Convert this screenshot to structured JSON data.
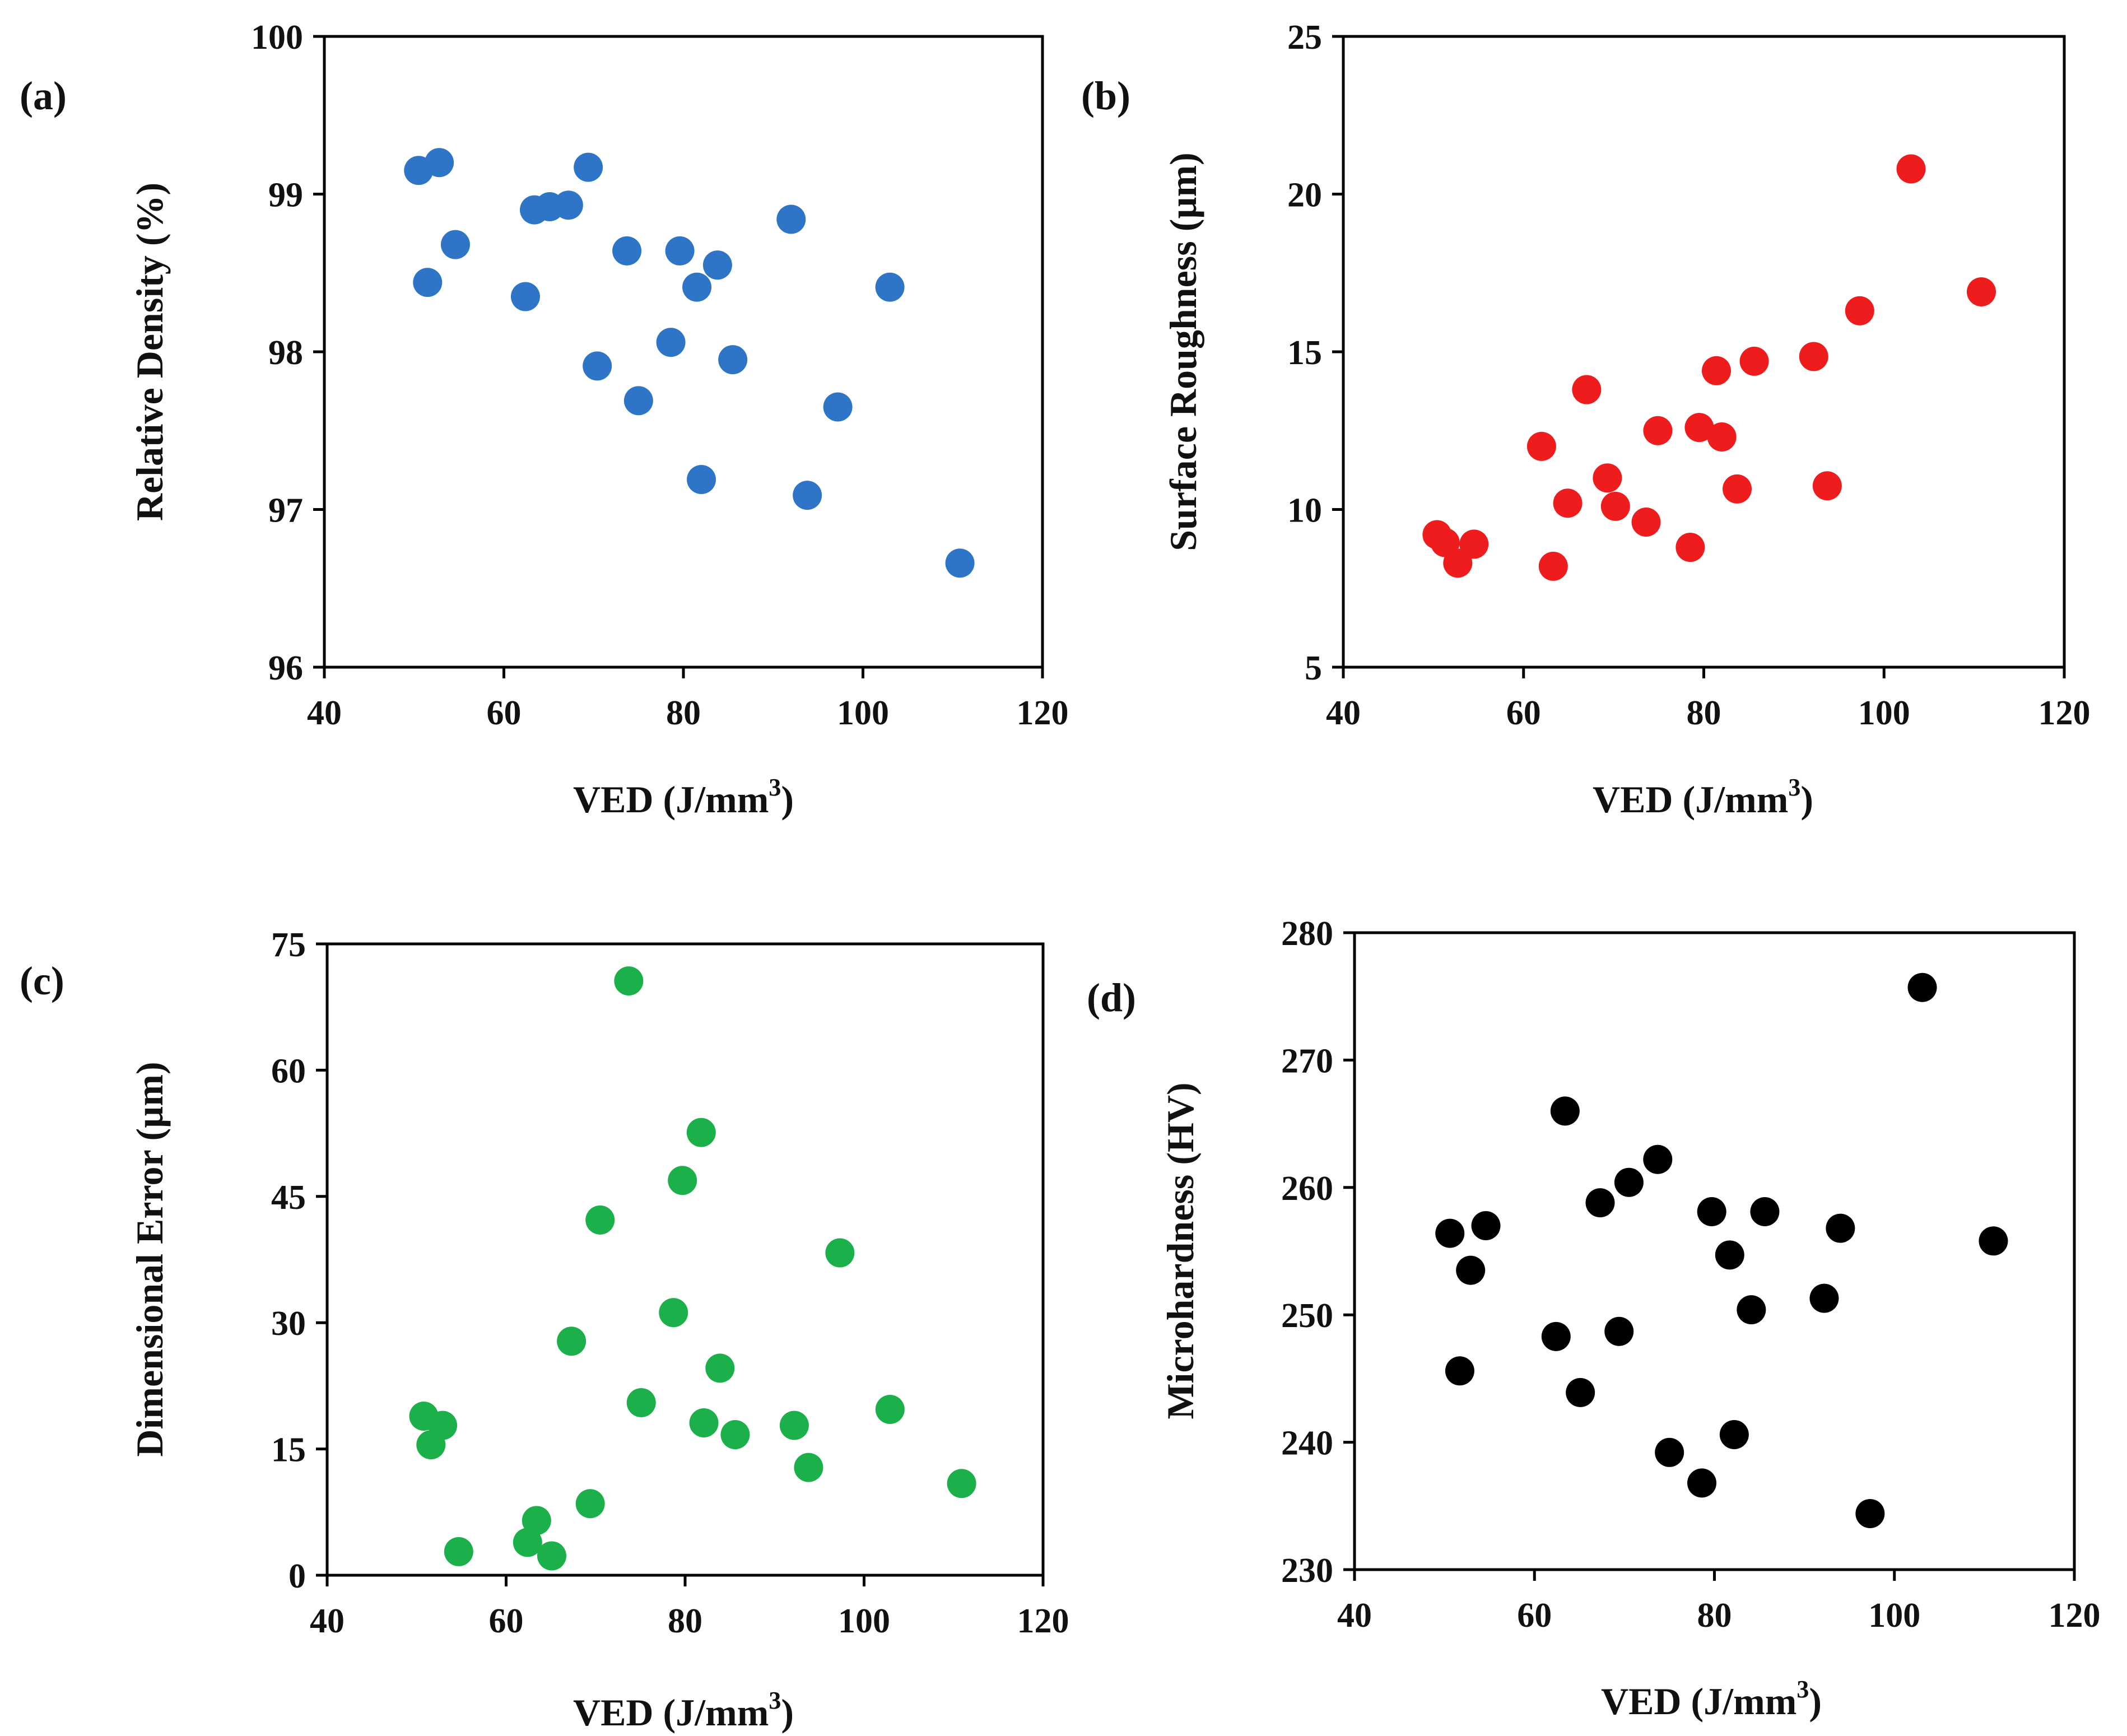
{
  "chart_data": [
    {
      "type": "scatter",
      "panel_label": "(a)",
      "ylabel": "Relative Density (%)",
      "xlabel": "VED (J/mm",
      "xlabel_sup": "3",
      "xlabel_close": ")",
      "xlim": [
        40,
        120
      ],
      "ylim": [
        96,
        100
      ],
      "xticks": [
        "40",
        "60",
        "80",
        "100",
        "120"
      ],
      "yticks": [
        "96",
        "97",
        "98",
        "99",
        "100"
      ],
      "color": "#2e75c7",
      "points": [
        [
          50.5,
          99.15
        ],
        [
          51.5,
          98.44
        ],
        [
          52.8,
          99.2
        ],
        [
          54.6,
          98.68
        ],
        [
          62.4,
          98.35
        ],
        [
          63.4,
          98.9
        ],
        [
          65.1,
          98.92
        ],
        [
          67.2,
          98.93
        ],
        [
          69.4,
          99.17
        ],
        [
          70.4,
          97.91
        ],
        [
          73.7,
          98.64
        ],
        [
          75.0,
          97.69
        ],
        [
          78.6,
          98.06
        ],
        [
          79.6,
          98.64
        ],
        [
          81.5,
          98.41
        ],
        [
          82.0,
          97.19
        ],
        [
          83.8,
          98.55
        ],
        [
          85.5,
          97.95
        ],
        [
          92.0,
          98.84
        ],
        [
          93.8,
          97.09
        ],
        [
          97.2,
          97.65
        ],
        [
          103.0,
          98.41
        ],
        [
          110.8,
          96.66
        ]
      ]
    },
    {
      "type": "scatter",
      "panel_label": "(b)",
      "ylabel": "Surface Roughness (µm)",
      "xlabel": "VED (J/mm",
      "xlabel_sup": "3",
      "xlabel_close": ")",
      "xlim": [
        40,
        120
      ],
      "ylim": [
        5,
        25
      ],
      "xticks": [
        "40",
        "60",
        "80",
        "100",
        "120"
      ],
      "yticks": [
        "5",
        "10",
        "15",
        "20",
        "25"
      ],
      "color": "#ee1c1c",
      "points": [
        [
          50.4,
          9.2
        ],
        [
          51.3,
          8.95
        ],
        [
          52.7,
          8.3
        ],
        [
          54.5,
          8.9
        ],
        [
          62.0,
          12.0
        ],
        [
          63.3,
          8.2
        ],
        [
          64.9,
          10.2
        ],
        [
          67.0,
          13.8
        ],
        [
          69.3,
          11.0
        ],
        [
          70.2,
          10.1
        ],
        [
          73.6,
          9.6
        ],
        [
          74.9,
          12.5
        ],
        [
          78.5,
          8.8
        ],
        [
          79.5,
          12.6
        ],
        [
          81.4,
          14.4
        ],
        [
          82.0,
          12.3
        ],
        [
          83.7,
          10.65
        ],
        [
          85.6,
          14.7
        ],
        [
          92.2,
          14.85
        ],
        [
          93.7,
          10.75
        ],
        [
          97.3,
          16.3
        ],
        [
          103.0,
          20.8
        ],
        [
          110.8,
          16.9
        ]
      ]
    },
    {
      "type": "scatter",
      "panel_label": "(c)",
      "ylabel": "Dimensional Error (µm)",
      "xlabel": "VED (J/mm",
      "xlabel_sup": "3",
      "xlabel_close": ")",
      "xlim": [
        40,
        120
      ],
      "ylim": [
        0,
        75
      ],
      "xticks": [
        "40",
        "60",
        "80",
        "100",
        "120"
      ],
      "yticks": [
        "0",
        "15",
        "30",
        "45",
        "60",
        "75"
      ],
      "color": "#1cb04a",
      "points": [
        [
          50.8,
          18.9
        ],
        [
          51.6,
          15.5
        ],
        [
          52.9,
          17.8
        ],
        [
          54.7,
          2.8
        ],
        [
          62.4,
          3.9
        ],
        [
          63.4,
          6.5
        ],
        [
          65.1,
          2.3
        ],
        [
          67.3,
          27.8
        ],
        [
          69.4,
          8.5
        ],
        [
          70.5,
          42.2
        ],
        [
          73.7,
          70.6
        ],
        [
          75.1,
          20.5
        ],
        [
          78.7,
          31.2
        ],
        [
          79.7,
          46.9
        ],
        [
          81.8,
          52.6
        ],
        [
          82.1,
          18.1
        ],
        [
          83.9,
          24.6
        ],
        [
          85.6,
          16.7
        ],
        [
          92.2,
          17.8
        ],
        [
          93.8,
          12.8
        ],
        [
          97.3,
          38.3
        ],
        [
          102.9,
          19.7
        ],
        [
          110.9,
          10.9
        ]
      ]
    },
    {
      "type": "scatter",
      "panel_label": "(d)",
      "ylabel": "Microhardness (HV)",
      "xlabel": "VED (J/mm",
      "xlabel_sup": "3",
      "xlabel_close": ")",
      "xlim": [
        40,
        120
      ],
      "ylim": [
        230,
        280
      ],
      "xticks": [
        "40",
        "60",
        "80",
        "100",
        "120"
      ],
      "yticks": [
        "230",
        "240",
        "250",
        "260",
        "270",
        "280"
      ],
      "color": "#000000",
      "points": [
        [
          50.6,
          256.4
        ],
        [
          51.7,
          245.6
        ],
        [
          52.9,
          253.5
        ],
        [
          54.6,
          257.0
        ],
        [
          62.4,
          248.3
        ],
        [
          63.4,
          266.0
        ],
        [
          65.1,
          243.9
        ],
        [
          67.3,
          258.8
        ],
        [
          69.4,
          248.7
        ],
        [
          70.5,
          260.4
        ],
        [
          73.7,
          262.2
        ],
        [
          75.0,
          239.2
        ],
        [
          78.6,
          236.8
        ],
        [
          79.7,
          258.1
        ],
        [
          81.7,
          254.7
        ],
        [
          82.2,
          240.6
        ],
        [
          84.1,
          250.4
        ],
        [
          85.6,
          258.1
        ],
        [
          92.2,
          251.3
        ],
        [
          94.0,
          256.8
        ],
        [
          97.3,
          234.4
        ],
        [
          103.1,
          275.7
        ],
        [
          111.0,
          255.8
        ]
      ]
    }
  ]
}
